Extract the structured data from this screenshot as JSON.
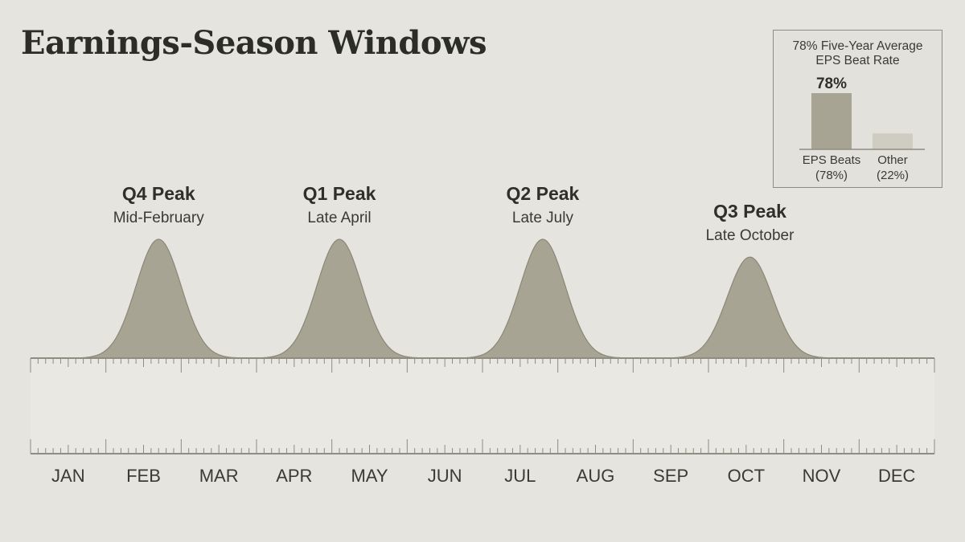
{
  "title": "Earnings-Season Windows",
  "chart_data": {
    "type": "area",
    "title": "Earnings-Season Windows",
    "x_categories": [
      "JAN",
      "FEB",
      "MAR",
      "APR",
      "MAY",
      "JUN",
      "JUL",
      "AUG",
      "SEP",
      "OCT",
      "NOV",
      "DEC"
    ],
    "peaks": [
      {
        "label": "Q4 Peak",
        "sublabel": "Mid-February",
        "month": 2.2,
        "relative_intensity": 1.0
      },
      {
        "label": "Q1 Peak",
        "sublabel": "Late April",
        "month": 4.6,
        "relative_intensity": 1.0
      },
      {
        "label": "Q2 Peak",
        "sublabel": "Late July",
        "month": 7.3,
        "relative_intensity": 1.0
      },
      {
        "label": "Q3 Peak",
        "sublabel": "Late October",
        "month": 10.05,
        "relative_intensity": 0.85
      }
    ],
    "grid": false,
    "colors": {
      "fill": "#a7a493",
      "stroke": "#8a8777",
      "background": "#e5e4df"
    }
  },
  "inset": {
    "title_line1": "78% Five-Year Average",
    "title_line2": "EPS Beat Rate",
    "chart_data": {
      "type": "bar",
      "categories": [
        "EPS Beats (78%)",
        "Other (22%)"
      ],
      "values": [
        78,
        22
      ],
      "data_labels": [
        "78%",
        ""
      ],
      "bar_labels": [
        [
          "EPS Beats",
          "(78%)"
        ],
        [
          "Other",
          "(22%)"
        ]
      ],
      "colors": [
        "#a7a493",
        "#cfcdc1"
      ]
    }
  }
}
